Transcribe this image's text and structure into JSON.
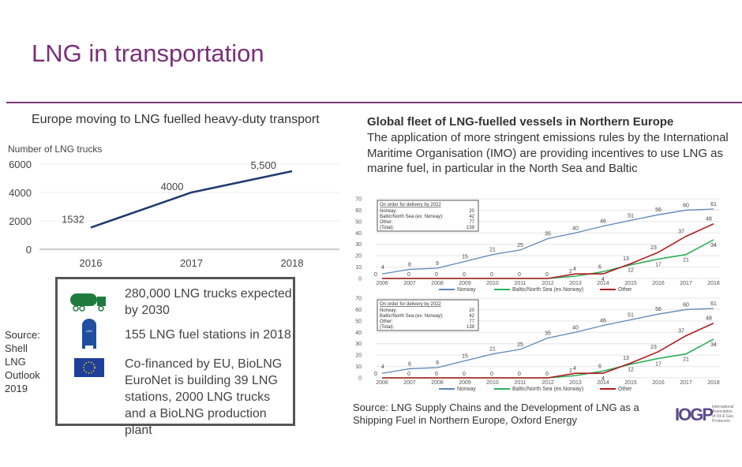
{
  "slide": {
    "title": "LNG in transportation",
    "accent": "#7a2f78"
  },
  "right_text": {
    "heading": "Global fleet of LNG-fuelled vessels in Northern Europe",
    "body": "The application of more stringent emissions rules by the International Maritime Organisation (IMO) are providing incentives to use LNG as marine fuel, in particular in the North Sea and Baltic",
    "source": "Source: LNG Supply Chains and the Development of LNG as a Shipping Fuel in Northern Europe, Oxford Energy"
  },
  "left_source": [
    "Source:",
    "Shell",
    "LNG",
    "Outlook",
    "2019"
  ],
  "info_box": [
    {
      "icon": "truck-icon",
      "text": "280,000 LNG trucks expected by 2030"
    },
    {
      "icon": "fuel-station-icon",
      "icon_label": "LNG",
      "text": "155 LNG fuel stations in 2018"
    },
    {
      "icon": "eu-flag-icon",
      "text": "Co-financed by EU, BioLNG EuroNet is building 39 LNG stations, 2000 LNG trucks and a BioLNG production plant"
    }
  ],
  "logo": {
    "mark": "IOGP",
    "text": [
      "International",
      "Association",
      "of Oil & Gas",
      "Producers"
    ]
  },
  "chart_data": [
    {
      "type": "line",
      "title": "Europe moving to LNG fuelled heavy-duty transport",
      "ylabel": "Number of LNG trucks",
      "categories": [
        "2016",
        "2017",
        "2018"
      ],
      "series": [
        {
          "values": [
            1532,
            4000,
            5500
          ],
          "labels": [
            "1532",
            "4000",
            "5,500"
          ],
          "color": "#1f3a6e"
        }
      ],
      "ylim": [
        0,
        6000
      ],
      "yticks": [
        "0",
        "2000",
        "4000",
        "6000"
      ],
      "grid": true
    },
    {
      "type": "line",
      "categories": [
        "2006",
        "2007",
        "2008",
        "2009",
        "2010",
        "2011",
        "2012",
        "2013",
        "2014",
        "2015",
        "2016",
        "2017",
        "2018"
      ],
      "ylim": [
        0,
        70
      ],
      "yticks": [
        "0",
        "10",
        "20",
        "30",
        "40",
        "50",
        "60",
        "70"
      ],
      "grid": true,
      "legend": "bottom",
      "inset": {
        "title": "On order for delivery by 2022",
        "rows": [
          [
            "Norway:",
            "20"
          ],
          [
            "Baltic/North Sea (ex. Norway):",
            "42"
          ],
          [
            "Other:",
            "77"
          ],
          [
            "(Total):",
            "139"
          ]
        ]
      },
      "series": [
        {
          "name": "Norway",
          "color": "#5b87b8",
          "values": [
            4,
            8,
            9,
            15,
            21,
            25,
            35,
            40,
            46,
            51,
            56,
            60,
            61
          ]
        },
        {
          "name": "Baltic/North Sea (ex.Norway)",
          "color": "#2eb05a",
          "values": [
            0,
            0,
            0,
            0,
            0,
            0,
            0,
            2,
            6,
            12,
            17,
            21,
            34
          ]
        },
        {
          "name": "Other",
          "color": "#b01c1c",
          "values": [
            0,
            0,
            0,
            0,
            0,
            0,
            0,
            4,
            4,
            13,
            23,
            37,
            48
          ]
        }
      ]
    },
    {
      "type": "line",
      "categories": [
        "2006",
        "2007",
        "2008",
        "2009",
        "2010",
        "2011",
        "2012",
        "2013",
        "2014",
        "2015",
        "2016",
        "2017",
        "2018"
      ],
      "ylim": [
        0,
        70
      ],
      "yticks": [
        "0",
        "10",
        "20",
        "30",
        "40",
        "50",
        "60",
        "70"
      ],
      "grid": true,
      "legend": "bottom",
      "inset": {
        "title": "On order for delivery by 2022",
        "rows": [
          [
            "Norway:",
            "20"
          ],
          [
            "Baltic/North Sea (ex. Norway):",
            "42"
          ],
          [
            "Other:",
            "77"
          ],
          [
            "(Total):",
            "139"
          ]
        ]
      },
      "series": [
        {
          "name": "Norway",
          "color": "#5b87b8",
          "values": [
            4,
            8,
            9,
            15,
            21,
            25,
            35,
            40,
            46,
            51,
            56,
            60,
            61
          ]
        },
        {
          "name": "Baltic/North Sea (ex.Norway)",
          "color": "#2eb05a",
          "values": [
            0,
            0,
            0,
            0,
            0,
            0,
            0,
            2,
            6,
            12,
            17,
            21,
            34
          ]
        },
        {
          "name": "Other",
          "color": "#b01c1c",
          "values": [
            0,
            0,
            0,
            0,
            0,
            0,
            0,
            4,
            4,
            13,
            23,
            37,
            48
          ]
        }
      ]
    }
  ]
}
